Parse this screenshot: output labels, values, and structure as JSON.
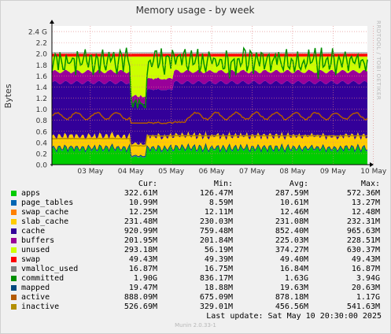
{
  "chart_data": {
    "type": "area",
    "title": "Memory usage - by week",
    "ylabel": "Bytes",
    "ylim": [
      0,
      2.5
    ],
    "y_ticks": [
      "0.0",
      "0.2",
      "0.4",
      "0.6",
      "0.8",
      "1.0",
      "1.2",
      "1.4",
      "1.6",
      "1.8",
      "2.0",
      "2.2",
      "2.4 G"
    ],
    "y_tick_values": [
      0,
      0.2,
      0.4,
      0.6,
      0.8,
      1.0,
      1.2,
      1.4,
      1.6,
      1.8,
      2.0,
      2.2,
      2.4
    ],
    "x_ticks": [
      "03 May",
      "04 May",
      "05 May",
      "06 May",
      "07 May",
      "08 May",
      "09 May",
      "10 May"
    ],
    "grid": true,
    "series": [
      {
        "name": "apps",
        "color": "#00cc00",
        "cur": "322.61M",
        "min": "126.47M",
        "avg": "287.59M",
        "max": "572.36M"
      },
      {
        "name": "page_tables",
        "color": "#0066b3",
        "cur": "10.99M",
        "min": "8.59M",
        "avg": "10.61M",
        "max": "13.27M"
      },
      {
        "name": "swap_cache",
        "color": "#ff8000",
        "cur": "12.25M",
        "min": "12.11M",
        "avg": "12.46M",
        "max": "12.48M"
      },
      {
        "name": "slab_cache",
        "color": "#ffcc00",
        "cur": "231.48M",
        "min": "230.03M",
        "avg": "231.08M",
        "max": "232.31M"
      },
      {
        "name": "cache",
        "color": "#330099",
        "cur": "920.99M",
        "min": "759.48M",
        "avg": "852.40M",
        "max": "965.63M"
      },
      {
        "name": "buffers",
        "color": "#990099",
        "cur": "201.95M",
        "min": "201.84M",
        "avg": "225.03M",
        "max": "228.51M"
      },
      {
        "name": "unused",
        "color": "#ccff00",
        "cur": "293.18M",
        "min": "56.19M",
        "avg": "374.27M",
        "max": "630.37M"
      },
      {
        "name": "swap",
        "color": "#ff0000",
        "cur": "49.43M",
        "min": "49.39M",
        "avg": "49.40M",
        "max": "49.43M"
      },
      {
        "name": "vmalloc_used",
        "color": "#808080",
        "cur": "16.87M",
        "min": "16.75M",
        "avg": "16.84M",
        "max": "16.87M"
      },
      {
        "name": "committed",
        "color": "#008f00",
        "cur": "1.90G",
        "min": "836.17M",
        "avg": "1.63G",
        "max": "3.94G"
      },
      {
        "name": "mapped",
        "color": "#00487d",
        "cur": "19.47M",
        "min": "18.88M",
        "avg": "19.63M",
        "max": "20.63M"
      },
      {
        "name": "active",
        "color": "#b35a00",
        "cur": "888.09M",
        "min": "675.09M",
        "avg": "878.18M",
        "max": "1.17G"
      },
      {
        "name": "inactive",
        "color": "#b38f00",
        "cur": "526.69M",
        "min": "329.01M",
        "avg": "456.56M",
        "max": "541.63M"
      }
    ]
  },
  "legend_headers": {
    "cur": "Cur:",
    "min": "Min:",
    "avg": "Avg:",
    "max": "Max:"
  },
  "footer": {
    "last_update": "Last update:  Sat May 10 20:30:00 2025",
    "credit": "Munin 2.0.33-1",
    "side_text": "RRDTOOL / TOBI OETIKER"
  }
}
